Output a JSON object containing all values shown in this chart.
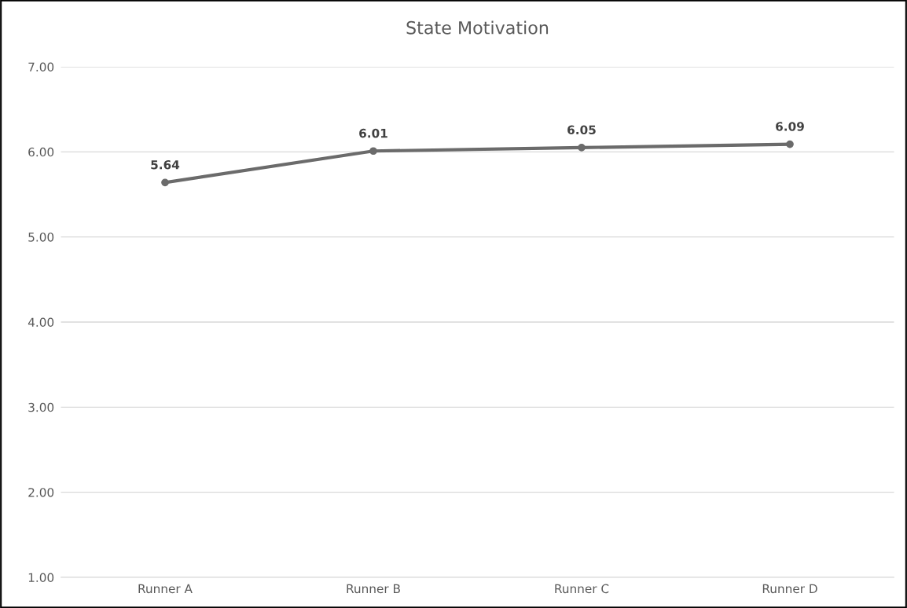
{
  "chart_data": {
    "type": "line",
    "title": "State Motivation",
    "categories": [
      "Runner A",
      "Runner B",
      "Runner C",
      "Runner D"
    ],
    "series": [
      {
        "color": "#6b6b6b",
        "values": [
          5.64,
          6.01,
          6.05,
          6.09
        ]
      }
    ],
    "ylim": [
      1,
      7
    ],
    "yticks": [
      {
        "value": 1,
        "label": "1.00"
      },
      {
        "value": 2,
        "label": "2.00"
      },
      {
        "value": 3,
        "label": "3.00"
      },
      {
        "value": 4,
        "label": "4.00"
      },
      {
        "value": 5,
        "label": "5.00"
      },
      {
        "value": 6,
        "label": "6.00"
      },
      {
        "value": 7,
        "label": "7.00"
      }
    ],
    "grid": "y",
    "marker": "circle",
    "line_style": "solid",
    "data_labels": true,
    "legend": false
  }
}
